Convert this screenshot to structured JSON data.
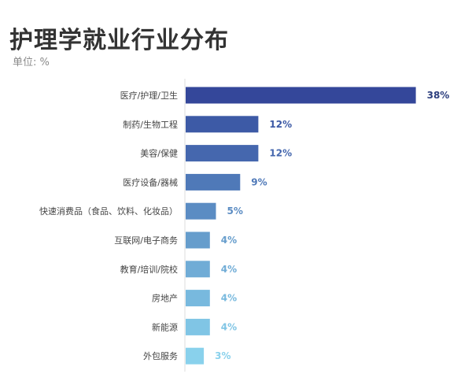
{
  "title": "护理学就业行业分布",
  "subtitle": "单位: %",
  "chart_data": {
    "type": "bar",
    "orientation": "horizontal",
    "title": "护理学就业行业分布",
    "unit": "%",
    "categories": [
      "医疗/护理/卫生",
      "制药/生物工程",
      "美容/保健",
      "医疗设备/器械",
      "快速消费品（食品、饮料、化妆品）",
      "互联网/电子商务",
      "教育/培训/院校",
      "房地产",
      "新能源",
      "外包服务"
    ],
    "values": [
      38,
      12,
      12,
      9,
      5,
      4,
      4,
      4,
      4,
      3
    ],
    "value_labels": [
      "38%",
      "12%",
      "12%",
      "9%",
      "5%",
      "4%",
      "4%",
      "4%",
      "4%",
      "3%"
    ],
    "colors": [
      "#34479a",
      "#3d5aa6",
      "#4567ae",
      "#4f79b8",
      "#5b8cc3",
      "#669dcc",
      "#70acd6",
      "#78b9de",
      "#80c5e5",
      "#89d1ec"
    ],
    "xlim": [
      0,
      40
    ],
    "grid": false,
    "legend": "none"
  }
}
